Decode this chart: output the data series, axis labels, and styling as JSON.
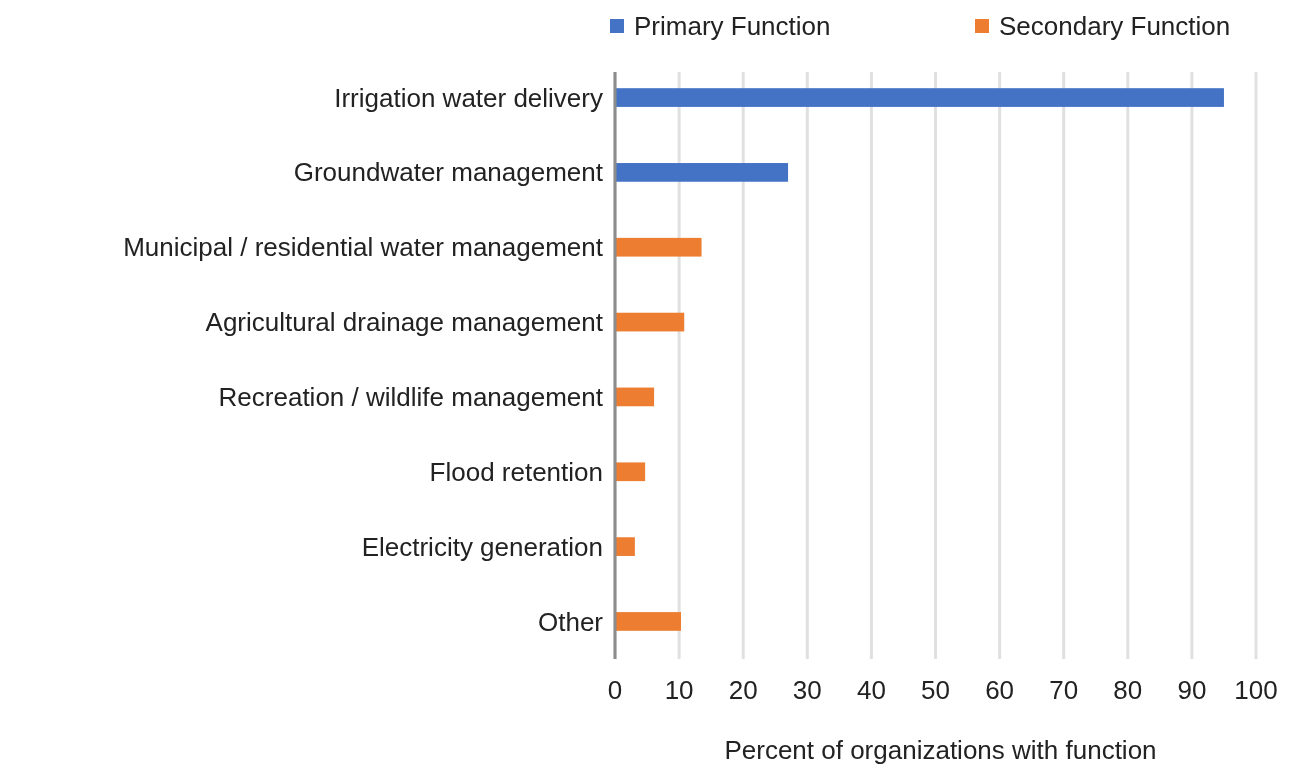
{
  "chart_data": {
    "type": "bar",
    "orientation": "horizontal",
    "xlabel": "Percent of organizations with function",
    "categories": [
      "Irrigation water delivery",
      "Groundwater management",
      "Municipal / residential water management",
      "Agricultural drainage management",
      "Recreation / wildlife management",
      "Flood retention",
      "Electricity generation",
      "Other"
    ],
    "series": [
      {
        "name": "Primary Function",
        "color": "#4472c4",
        "values": [
          95,
          27,
          null,
          null,
          null,
          null,
          null,
          null
        ]
      },
      {
        "name": "Secondary Function",
        "color": "#ed7d31",
        "values": [
          null,
          null,
          13.5,
          10.8,
          6.1,
          4.7,
          3.1,
          10.3
        ]
      }
    ],
    "xlim": [
      0,
      100
    ],
    "xticks": [
      0,
      10,
      20,
      30,
      40,
      50,
      60,
      70,
      80,
      90,
      100
    ],
    "grid": "x",
    "legend": "top right"
  }
}
